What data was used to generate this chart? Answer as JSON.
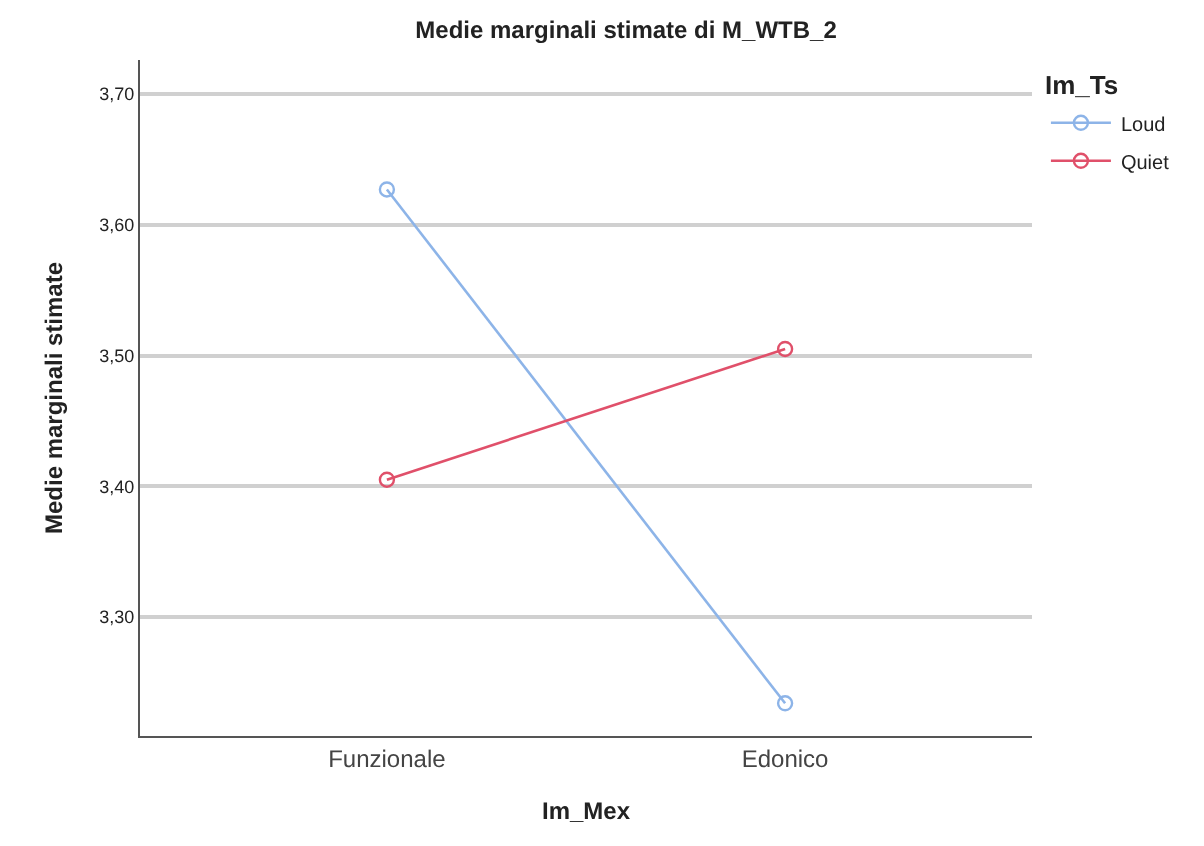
{
  "chart_data": {
    "type": "line",
    "title": "Medie marginali stimate di M_WTB_2",
    "xlabel": "Im_Mex",
    "ylabel": "Medie marginali stimate",
    "legend_title": "Im_Ts",
    "categories": [
      "Funzionale",
      "Edonico"
    ],
    "series": [
      {
        "name": "Loud",
        "color": "#8db4e8",
        "values": [
          3.627,
          3.234
        ]
      },
      {
        "name": "Quiet",
        "color": "#e0506a",
        "values": [
          3.405,
          3.505
        ]
      }
    ],
    "ylim": [
      3.209,
      3.726
    ],
    "yticks": [
      {
        "value": 3.3,
        "label": "3,30"
      },
      {
        "value": 3.4,
        "label": "3,40"
      },
      {
        "value": 3.5,
        "label": "3,50"
      },
      {
        "value": 3.6,
        "label": "3,60"
      },
      {
        "value": 3.7,
        "label": "3,70"
      }
    ],
    "grid": "y",
    "legend": "top right",
    "marker": "circle",
    "line_style": "solid"
  }
}
